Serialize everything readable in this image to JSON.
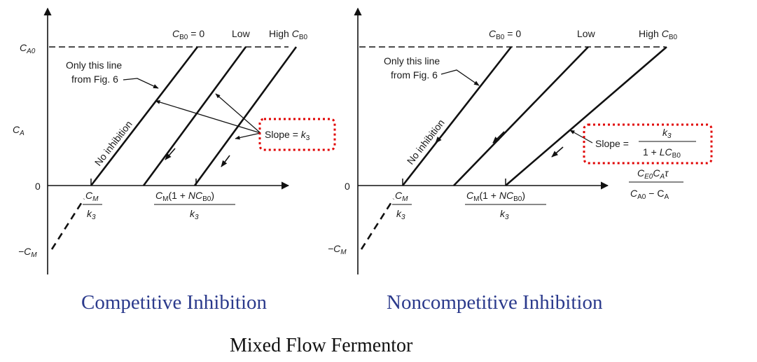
{
  "figure_title": "Mixed Flow Fermentor",
  "colors": {
    "line": "#111111",
    "caption": "#2b3a8c",
    "highlight": "#e00000"
  },
  "left_panel": {
    "caption": "Competitive Inhibition",
    "y_axis_label": {
      "base": "C",
      "sub": "A"
    },
    "top_value": {
      "base": "C",
      "sub": "A0"
    },
    "zero_label": "0",
    "neg_label": {
      "prefix": "−C",
      "sub": "M"
    },
    "x_tick_1": {
      "num_base": "C",
      "num_sub": "M",
      "den": "k",
      "den_sub": "3"
    },
    "x_tick_2": {
      "num": "C",
      "num_sub": "M",
      "num_paren": "(1 + ",
      "num_n": "NC",
      "num_n_sub": "B0",
      "num_close": ")",
      "den": "k",
      "den_sub": "3"
    },
    "line_labels": {
      "cb0_zero": {
        "base": "C",
        "sub": "B0",
        "rest": " = 0"
      },
      "low": "Low",
      "high": {
        "prefix": "High ",
        "base": "C",
        "sub": "B0"
      }
    },
    "annotation_line1": "Only this line",
    "annotation_line2": "from Fig. 6",
    "rotated_label": "No inhibition",
    "slope_label": {
      "prefix": "Slope = ",
      "base": "k",
      "sub": "3"
    }
  },
  "right_panel": {
    "caption": "Noncompetitive Inhibition",
    "zero_label": "0",
    "neg_label": {
      "prefix": "−C",
      "sub": "M"
    },
    "x_tick_1": {
      "num_base": "C",
      "num_sub": "M",
      "den": "k",
      "den_sub": "3"
    },
    "x_tick_2": {
      "num": "C",
      "num_sub": "M",
      "num_paren": "(1 + ",
      "num_n": "NC",
      "num_n_sub": "B0",
      "num_close": ")",
      "den": "k",
      "den_sub": "3"
    },
    "line_labels": {
      "cb0_zero": {
        "base": "C",
        "sub": "B0",
        "rest": " = 0"
      },
      "low": "Low",
      "high": {
        "prefix": "High ",
        "base": "C",
        "sub": "B0"
      }
    },
    "annotation_line1": "Only this line",
    "annotation_line2": "from Fig. 6",
    "rotated_label": "No inhibition",
    "slope_label": {
      "prefix": "Slope = ",
      "num": "k",
      "num_sub": "3",
      "den": "1 + ",
      "den_l": "LC",
      "den_sub": "B0"
    },
    "x_axis_label": {
      "num": "C",
      "num_sub1": "E0",
      "num_mid": "C",
      "num_sub2": "A",
      "num_tau": "τ",
      "den": "C",
      "den_sub1": "A0",
      "den_mid": " − C",
      "den_sub2": "A"
    }
  }
}
